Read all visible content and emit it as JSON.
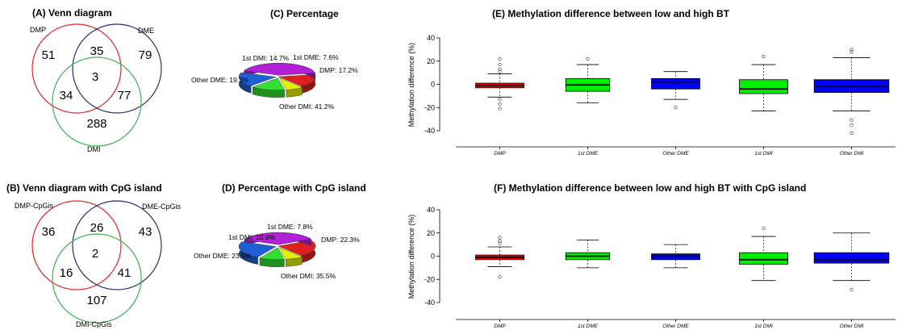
{
  "panels": {
    "A": {
      "title": "(A) Venn diagram",
      "labels": [
        "DMP",
        "DME",
        "DMI"
      ],
      "regions": {
        "only_1": "51",
        "only_2": "79",
        "only_3": "288",
        "d12": "35",
        "d13": "34",
        "d23": "77",
        "all": "3"
      }
    },
    "B": {
      "title": "(B) Venn diagram with CpG island",
      "labels": [
        "DMP-CpGis",
        "DME-CpGis",
        "DMI-CpGis"
      ],
      "regions": {
        "only_1": "36",
        "only_2": "43",
        "only_3": "107",
        "d12": "26",
        "d13": "16",
        "d23": "41",
        "all": "2"
      }
    },
    "C": {
      "title": "(C) Percentage"
    },
    "D": {
      "title": "(D) Percentage with CpG island"
    },
    "E": {
      "title": "(E)  Methylation difference between low and high BT"
    },
    "F": {
      "title": "(F)  Methylation difference between low and high BT with CpG island"
    }
  },
  "colors": {
    "venn": [
      "#e8262b",
      "#2b2f7e",
      "#3cb44b"
    ],
    "DMP": "#e02020",
    "1st DME": "#e6f000",
    "Other DME": "#1e5fd6",
    "1st DMI": "#33dd33",
    "Other DMI": "#b31fd8",
    "box_fill": [
      "#ff0000",
      "#00ee00",
      "#0000ff",
      "#00ee00",
      "#0000ff"
    ]
  },
  "chart_data": [
    {
      "type": "pie",
      "panel": "C",
      "slices": [
        {
          "label": "DMP",
          "value": 17.2,
          "text": "DMP: 17.2%"
        },
        {
          "label": "Other DMI",
          "value": 41.2,
          "text": "Other DMI: 41.2%"
        },
        {
          "label": "Other DME",
          "value": 19.3,
          "text": "Other DME: 19.3%"
        },
        {
          "label": "1st DMI",
          "value": 14.7,
          "text": "1st DMI: 14.7%"
        },
        {
          "label": "1st DME",
          "value": 7.6,
          "text": "1st DME: 7.6%"
        }
      ]
    },
    {
      "type": "pie",
      "panel": "D",
      "slices": [
        {
          "label": "DMP",
          "value": 22.3,
          "text": "DMP: 22.3%"
        },
        {
          "label": "Other DMI",
          "value": 35.5,
          "text": "Other DMI: 35.5%"
        },
        {
          "label": "Other DME",
          "value": 23.5,
          "text": "Other DME: 23.5%"
        },
        {
          "label": "1st DMI",
          "value": 10.9,
          "text": "1st DMI: 10.9%"
        },
        {
          "label": "1st DME",
          "value": 7.8,
          "text": "1st DME: 7.8%"
        }
      ]
    },
    {
      "type": "boxplot",
      "panel": "E",
      "ylabel": "Methylation difference (%)",
      "ylim": [
        -45,
        42
      ],
      "yticks": [
        -40,
        -20,
        0,
        20,
        40
      ],
      "categories": [
        "DMP",
        "1st DME",
        "Other DME",
        "1st DMI",
        "Other DMI"
      ],
      "boxes": [
        {
          "q1": -3,
          "median": -1,
          "q3": 1,
          "lo": -11,
          "hi": 9,
          "outliers": [
            22,
            17,
            13,
            11,
            -13,
            -17,
            -21
          ]
        },
        {
          "q1": -6,
          "median": -0.5,
          "q3": 5,
          "lo": -16,
          "hi": 17,
          "outliers": [
            22
          ]
        },
        {
          "q1": -4,
          "median": 2,
          "q3": 5,
          "lo": -13,
          "hi": 11,
          "outliers": [
            -20
          ]
        },
        {
          "q1": -8,
          "median": -4,
          "q3": 4,
          "lo": -23,
          "hi": 17,
          "outliers": [
            24
          ]
        },
        {
          "q1": -7,
          "median": -2,
          "q3": 4,
          "lo": -23,
          "hi": 23,
          "outliers": [
            30,
            28,
            -31,
            -35,
            -42
          ]
        }
      ]
    },
    {
      "type": "boxplot",
      "panel": "F",
      "ylabel": "Methylation difference (%)",
      "ylim": [
        -45,
        42
      ],
      "yticks": [
        -40,
        -20,
        0,
        20,
        40
      ],
      "categories": [
        "DMP",
        "1st DME",
        "Other DME",
        "1st DMI",
        "Other DMI"
      ],
      "boxes": [
        {
          "q1": -3,
          "median": -1,
          "q3": 1,
          "lo": -9,
          "hi": 8,
          "outliers": [
            16,
            13,
            11,
            -18
          ]
        },
        {
          "q1": -3,
          "median": 0,
          "q3": 3,
          "lo": -10,
          "hi": 14,
          "outliers": []
        },
        {
          "q1": -3,
          "median": 0,
          "q3": 2,
          "lo": -10,
          "hi": 10,
          "outliers": []
        },
        {
          "q1": -7,
          "median": -3,
          "q3": 3,
          "lo": -21,
          "hi": 17,
          "outliers": [
            24
          ]
        },
        {
          "q1": -6,
          "median": -3,
          "q3": 3,
          "lo": -21,
          "hi": 20,
          "outliers": [
            -29
          ]
        }
      ]
    }
  ]
}
